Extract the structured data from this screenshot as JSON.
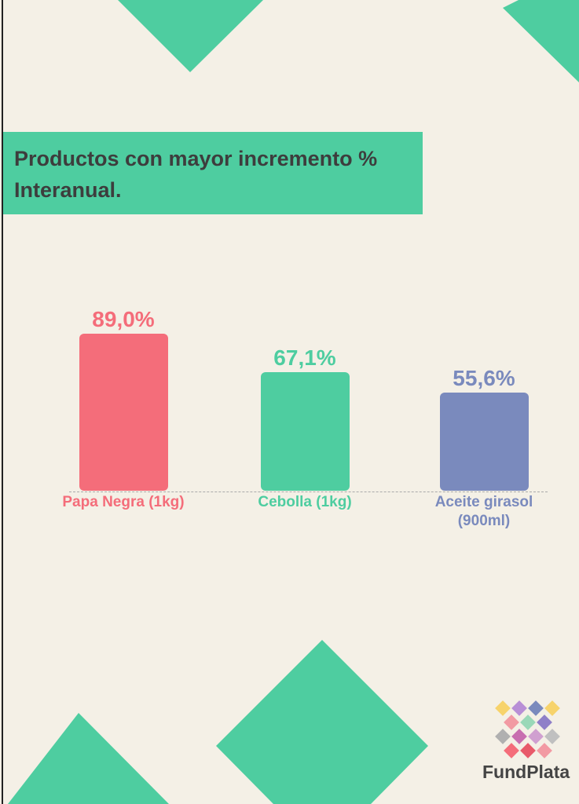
{
  "chart_data": {
    "type": "bar",
    "title": "Productos con mayor incremento % Interanual.",
    "categories": [
      "Papa Negra (1kg)",
      "Cebolla (1kg)",
      "Aceite girasol (900ml)"
    ],
    "values": [
      89.0,
      67.1,
      55.6
    ],
    "value_labels": [
      "89,0%",
      "67,1%",
      "55,6%"
    ],
    "colors": [
      "#f46d7a",
      "#4ecda0",
      "#7a8abd"
    ],
    "ylim": [
      0,
      100
    ]
  },
  "brand": "FundPlata"
}
